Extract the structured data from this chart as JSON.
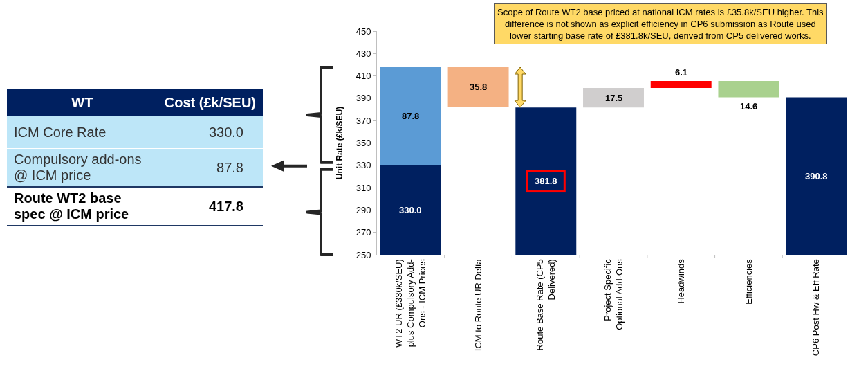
{
  "chart_data": [
    {
      "type": "other",
      "annotations": [
        "WT",
        "Cost (£k/SEU)",
        "ICM Core Rate",
        "330.0",
        "Compulsory add-ons @ ICM price",
        "87.8",
        "Route WT2 base spec @ ICM price",
        "417.8"
      ]
    },
    {
      "type": "bar",
      "ylabel": "Unit Rate (£k/SEU)",
      "categories": [
        "WT2 UR (£330k/SEU) plus Compulsory Add-Ons - ICM Prices",
        "ICM to Route UR Delta",
        "Route Base Rate (CP5 Delivered)",
        "Project Specific Optional Add-Ons",
        "Headwinds",
        "Efficiencies",
        "CP6 Post Hw & Eff Rate"
      ],
      "ylim": [
        250,
        450
      ],
      "yticks": [
        250,
        270,
        290,
        310,
        330,
        350,
        370,
        390,
        410,
        430,
        450
      ],
      "grid": false,
      "series": [
        {
          "colors": [
            "#002060",
            "#002060",
            "#002060",
            "#002060",
            "#002060",
            "#002060",
            "#002060"
          ],
          "values": [
            330.0,
            null,
            381.8,
            null,
            null,
            null,
            390.8
          ],
          "value_labels": [
            "330.0",
            null,
            "381.8",
            null,
            null,
            null,
            "390.8"
          ]
        },
        {
          "colors": [
            "#5b9bd5",
            "#f4b183",
            "#ffffff",
            "#d0cece",
            "#ff0000",
            "#a9d18e",
            "#ffffff"
          ],
          "base": [
            330.0,
            382.0,
            null,
            381.8,
            399.3,
            405.4,
            null
          ],
          "values": [
            87.8,
            35.8,
            null,
            17.5,
            6.1,
            -14.6,
            null
          ],
          "value_labels": [
            "87.8",
            "35.8",
            null,
            "17.5",
            "6.1",
            "14.6",
            null
          ]
        }
      ],
      "annotations": [
        "Scope of Route WT2 base priced at national ICM rates is £35.8k/SEU higher. This difference is not shown as explicit efficiency in CP6 submission as Route used lower starting base rate of £381.8k/SEU, derived from CP5 delivered works."
      ]
    }
  ]
}
